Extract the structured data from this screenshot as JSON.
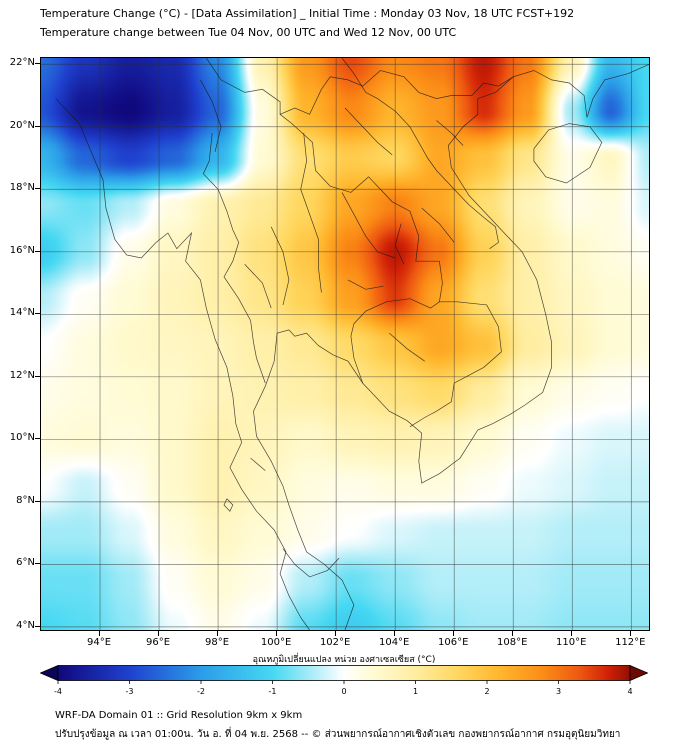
{
  "chart_data": {
    "type": "heatmap",
    "title": "Temperature Change (°C) - [Data Assimilation] _ Initial Time : Monday 03 Nov, 18 UTC FCST+192",
    "subtitle": "Temperature change between Tue 04 Nov, 00 UTC and Wed 12 Nov, 00 UTC",
    "x_axis": {
      "suffix": "°E",
      "ticks": [
        94,
        96,
        98,
        100,
        102,
        104,
        106,
        108,
        110,
        112
      ],
      "range": [
        92.0,
        112.6
      ]
    },
    "y_axis": {
      "suffix": "°N",
      "ticks": [
        4,
        6,
        8,
        10,
        12,
        14,
        16,
        18,
        20,
        22
      ],
      "range": [
        3.9,
        22.2
      ]
    },
    "grid": {
      "lons": [
        92.0,
        93.5,
        95.0,
        96.5,
        98.0,
        99.5,
        101.0,
        102.5,
        104.0,
        105.5,
        107.0,
        108.5,
        110.0,
        111.3,
        112.6
      ],
      "lats": [
        22.2,
        20.5,
        19.0,
        17.5,
        16.0,
        14.5,
        13.0,
        11.5,
        10.0,
        8.5,
        7.0,
        5.5,
        3.9
      ],
      "values": [
        [
          -2.5,
          -3.2,
          -3.6,
          -3.4,
          -2.2,
          0.8,
          2.6,
          3.4,
          2.8,
          3.0,
          3.8,
          3.0,
          0.8,
          -1.5,
          -1.0
        ],
        [
          -2.8,
          -3.8,
          -4.0,
          -3.6,
          -2.6,
          0.3,
          2.2,
          2.8,
          2.2,
          2.6,
          3.6,
          2.6,
          -0.5,
          -2.6,
          -1.0
        ],
        [
          -1.6,
          -2.6,
          -3.0,
          -2.6,
          -1.6,
          0.4,
          1.4,
          1.8,
          1.6,
          2.4,
          2.0,
          1.2,
          0.2,
          0.6,
          -0.4
        ],
        [
          -0.6,
          -0.8,
          -0.4,
          0.3,
          0.8,
          1.1,
          1.6,
          2.4,
          2.9,
          2.4,
          1.4,
          0.7,
          0.2,
          0.3,
          -0.2
        ],
        [
          -1.2,
          -0.6,
          0.2,
          0.6,
          0.9,
          1.3,
          1.9,
          2.9,
          3.8,
          3.0,
          1.7,
          0.9,
          0.5,
          0.3,
          0.1
        ],
        [
          -0.4,
          0.1,
          0.4,
          0.7,
          0.9,
          1.2,
          1.7,
          2.5,
          3.5,
          2.4,
          1.4,
          0.9,
          0.6,
          0.4,
          0.3
        ],
        [
          0.0,
          0.3,
          0.5,
          0.6,
          0.7,
          0.9,
          1.1,
          1.5,
          1.9,
          2.4,
          2.0,
          1.0,
          0.7,
          0.4,
          0.3
        ],
        [
          0.2,
          0.3,
          0.4,
          0.5,
          0.7,
          0.8,
          0.9,
          1.1,
          1.3,
          1.5,
          1.0,
          0.4,
          0.2,
          0.1,
          0.0
        ],
        [
          0.3,
          0.4,
          0.3,
          0.5,
          0.8,
          0.7,
          0.5,
          0.7,
          0.8,
          0.7,
          0.4,
          0.1,
          -0.1,
          -0.2,
          -0.2
        ],
        [
          0.0,
          -0.3,
          0.1,
          0.5,
          0.8,
          0.6,
          0.3,
          0.2,
          0.3,
          0.3,
          0.1,
          -0.1,
          -0.2,
          -0.3,
          -0.3
        ],
        [
          -0.5,
          -0.5,
          -0.2,
          0.3,
          0.6,
          0.4,
          0.2,
          0.0,
          -0.2,
          -0.3,
          -0.3,
          -0.3,
          -0.4,
          -0.4,
          -0.4
        ],
        [
          -0.8,
          -0.8,
          -0.5,
          0.1,
          0.4,
          0.2,
          -0.4,
          -0.8,
          -0.6,
          -0.4,
          -0.4,
          -0.4,
          -0.5,
          -0.5,
          -0.5
        ],
        [
          -1.0,
          -0.9,
          -0.6,
          -0.1,
          0.2,
          -0.1,
          -0.9,
          -1.2,
          -0.9,
          -0.6,
          -0.5,
          -0.5,
          -0.6,
          -0.6,
          -0.6
        ]
      ]
    },
    "colormap": [
      {
        "v": -4.0,
        "c": "#10087d"
      },
      {
        "v": -3.0,
        "c": "#1f41cf"
      },
      {
        "v": -2.0,
        "c": "#2b9ce8"
      },
      {
        "v": -1.0,
        "c": "#45d8f2"
      },
      {
        "v": -0.4,
        "c": "#b4eef8"
      },
      {
        "v": 0.0,
        "c": "#ffffff"
      },
      {
        "v": 0.4,
        "c": "#fffbd4"
      },
      {
        "v": 1.0,
        "c": "#ffeda0"
      },
      {
        "v": 1.6,
        "c": "#ffd75e"
      },
      {
        "v": 2.2,
        "c": "#ffb52c"
      },
      {
        "v": 2.8,
        "c": "#fb8b16"
      },
      {
        "v": 3.3,
        "c": "#ee5711"
      },
      {
        "v": 3.7,
        "c": "#cf2007"
      },
      {
        "v": 4.0,
        "c": "#930f03"
      }
    ],
    "colorbar": {
      "label": "อุณหภูมิเปลี่ยนแปลง หน่วย องศาเซลเซียส (°C)",
      "range": [
        -4,
        4
      ],
      "ticks": [
        -4,
        -3,
        -2,
        -1,
        0,
        1,
        2,
        3,
        4
      ],
      "under": "#0a0556",
      "over": "#6f0a02"
    }
  },
  "map_overlay": {
    "borders": [
      [
        [
          92.5,
          20.9
        ],
        [
          93.3,
          20.1
        ],
        [
          93.7,
          19.2
        ],
        [
          94.1,
          18.3
        ],
        [
          94.2,
          17.4
        ],
        [
          94.5,
          16.4
        ],
        [
          94.9,
          15.9
        ],
        [
          95.4,
          15.8
        ],
        [
          95.9,
          16.3
        ],
        [
          96.3,
          16.6
        ],
        [
          96.6,
          16.1
        ],
        [
          97.1,
          16.6
        ],
        [
          96.9,
          15.7
        ],
        [
          97.4,
          15.1
        ],
        [
          97.6,
          14.2
        ],
        [
          97.9,
          13.2
        ],
        [
          98.3,
          12.3
        ],
        [
          98.5,
          11.4
        ],
        [
          98.6,
          10.5
        ],
        [
          98.8,
          9.9
        ],
        [
          98.4,
          9.1
        ],
        [
          98.8,
          8.4
        ],
        [
          99.3,
          7.7
        ],
        [
          99.9,
          7.1
        ],
        [
          100.3,
          6.4
        ],
        [
          100.1,
          5.7
        ],
        [
          100.4,
          5.0
        ],
        [
          100.8,
          4.3
        ],
        [
          101.1,
          3.9
        ]
      ],
      [
        [
          102.3,
          3.9
        ],
        [
          102.6,
          4.7
        ],
        [
          102.2,
          5.5
        ],
        [
          101.6,
          6.0
        ],
        [
          101.0,
          6.4
        ],
        [
          100.7,
          7.1
        ],
        [
          100.4,
          7.9
        ],
        [
          100.2,
          8.5
        ],
        [
          99.8,
          9.3
        ],
        [
          99.3,
          10.1
        ],
        [
          99.2,
          10.9
        ],
        [
          99.6,
          11.7
        ],
        [
          99.9,
          12.5
        ],
        [
          100.0,
          13.4
        ],
        [
          100.4,
          13.5
        ],
        [
          100.6,
          13.3
        ],
        [
          101.0,
          13.4
        ],
        [
          101.4,
          13.0
        ],
        [
          101.9,
          12.7
        ],
        [
          102.4,
          12.5
        ],
        [
          102.9,
          11.8
        ],
        [
          103.3,
          11.4
        ],
        [
          103.8,
          10.9
        ],
        [
          104.4,
          10.6
        ],
        [
          104.9,
          10.2
        ],
        [
          104.8,
          9.3
        ],
        [
          104.9,
          8.6
        ],
        [
          105.5,
          8.9
        ],
        [
          106.2,
          9.4
        ],
        [
          106.8,
          10.3
        ],
        [
          107.3,
          10.5
        ],
        [
          107.9,
          10.8
        ],
        [
          108.4,
          11.1
        ],
        [
          109.0,
          11.5
        ],
        [
          109.3,
          12.3
        ],
        [
          109.3,
          13.1
        ],
        [
          109.1,
          14.0
        ],
        [
          108.8,
          15.1
        ],
        [
          108.3,
          16.0
        ],
        [
          107.8,
          16.5
        ],
        [
          107.1,
          17.2
        ],
        [
          106.5,
          17.8
        ],
        [
          105.9,
          18.7
        ],
        [
          105.8,
          19.4
        ],
        [
          106.3,
          20.0
        ],
        [
          106.8,
          20.4
        ],
        [
          106.8,
          20.9
        ],
        [
          107.4,
          21.1
        ],
        [
          108.0,
          21.6
        ],
        [
          108.7,
          21.8
        ],
        [
          109.3,
          21.5
        ],
        [
          109.9,
          21.4
        ],
        [
          110.4,
          21.0
        ],
        [
          110.5,
          20.3
        ],
        [
          110.7,
          20.9
        ],
        [
          111.1,
          21.5
        ],
        [
          111.9,
          21.7
        ],
        [
          112.6,
          22.0
        ]
      ],
      [
        [
          108.7,
          19.3
        ],
        [
          109.2,
          19.9
        ],
        [
          109.9,
          20.1
        ],
        [
          110.6,
          20.0
        ],
        [
          111.0,
          19.5
        ],
        [
          110.6,
          18.7
        ],
        [
          109.8,
          18.2
        ],
        [
          109.1,
          18.4
        ],
        [
          108.7,
          18.9
        ],
        [
          108.7,
          19.3
        ]
      ],
      [
        [
          97.8,
          19.8
        ],
        [
          97.7,
          18.9
        ],
        [
          97.5,
          18.5
        ],
        [
          98.0,
          18.0
        ],
        [
          98.3,
          17.3
        ],
        [
          98.5,
          16.7
        ],
        [
          98.7,
          16.3
        ],
        [
          98.5,
          15.7
        ],
        [
          98.2,
          15.2
        ],
        [
          98.7,
          14.5
        ],
        [
          99.1,
          13.8
        ],
        [
          99.2,
          13.1
        ],
        [
          99.3,
          12.6
        ],
        [
          99.6,
          11.8
        ]
      ],
      [
        [
          97.6,
          22.2
        ],
        [
          98.1,
          21.5
        ],
        [
          98.9,
          21.1
        ],
        [
          99.5,
          21.2
        ],
        [
          100.1,
          20.8
        ],
        [
          100.1,
          20.4
        ],
        [
          100.6,
          20.6
        ],
        [
          101.1,
          20.4
        ],
        [
          101.5,
          21.2
        ],
        [
          101.8,
          21.6
        ],
        [
          102.4,
          21.5
        ],
        [
          102.9,
          21.3
        ],
        [
          103.5,
          21.8
        ],
        [
          104.3,
          21.6
        ],
        [
          104.8,
          21.1
        ],
        [
          105.4,
          20.9
        ],
        [
          105.9,
          21.0
        ],
        [
          106.6,
          21.0
        ],
        [
          107.0,
          21.4
        ],
        [
          107.5,
          21.3
        ],
        [
          108.0,
          21.6
        ]
      ],
      [
        [
          100.1,
          20.4
        ],
        [
          100.5,
          20.1
        ],
        [
          101.2,
          19.5
        ],
        [
          101.3,
          18.6
        ],
        [
          101.8,
          18.1
        ],
        [
          102.5,
          17.9
        ],
        [
          103.1,
          18.4
        ],
        [
          103.9,
          17.6
        ],
        [
          104.5,
          17.3
        ],
        [
          104.8,
          16.5
        ],
        [
          104.7,
          15.7
        ],
        [
          105.5,
          15.7
        ],
        [
          105.6,
          15.0
        ],
        [
          105.5,
          14.4
        ]
      ],
      [
        [
          102.9,
          11.8
        ],
        [
          102.6,
          12.6
        ],
        [
          102.5,
          13.3
        ],
        [
          102.6,
          13.7
        ],
        [
          103.0,
          14.1
        ],
        [
          103.7,
          14.4
        ],
        [
          104.5,
          14.5
        ],
        [
          105.2,
          14.2
        ],
        [
          105.5,
          14.4
        ]
      ],
      [
        [
          102.2,
          22.2
        ],
        [
          102.6,
          21.7
        ],
        [
          103.0,
          21.1
        ],
        [
          103.4,
          20.9
        ],
        [
          104.0,
          20.5
        ],
        [
          104.5,
          20.0
        ],
        [
          104.8,
          19.5
        ],
        [
          105.1,
          19.0
        ],
        [
          105.4,
          18.6
        ],
        [
          105.9,
          18.1
        ],
        [
          106.5,
          17.5
        ],
        [
          107.0,
          17.1
        ],
        [
          107.4,
          16.8
        ],
        [
          107.5,
          16.3
        ],
        [
          107.2,
          16.1
        ]
      ],
      [
        [
          105.5,
          14.4
        ],
        [
          106.1,
          14.4
        ],
        [
          107.1,
          14.3
        ],
        [
          107.5,
          13.6
        ],
        [
          107.6,
          12.8
        ],
        [
          107.0,
          12.3
        ],
        [
          106.4,
          12.0
        ],
        [
          106.0,
          11.8
        ],
        [
          105.9,
          11.2
        ],
        [
          105.4,
          10.9
        ],
        [
          105.0,
          10.7
        ],
        [
          104.5,
          10.4
        ]
      ],
      [
        [
          100.2,
          6.5
        ],
        [
          100.6,
          6.0
        ],
        [
          101.1,
          5.6
        ],
        [
          101.7,
          5.8
        ],
        [
          102.1,
          6.2
        ]
      ],
      [
        [
          100.9,
          19.8
        ],
        [
          101.0,
          18.9
        ],
        [
          100.8,
          18.0
        ],
        [
          101.1,
          17.2
        ],
        [
          101.4,
          16.4
        ],
        [
          101.4,
          15.5
        ],
        [
          101.5,
          14.7
        ]
      ],
      [
        [
          102.2,
          17.9
        ],
        [
          102.6,
          17.2
        ],
        [
          103.0,
          16.5
        ],
        [
          103.4,
          16.0
        ],
        [
          104.0,
          15.8
        ]
      ],
      [
        [
          99.8,
          16.8
        ],
        [
          100.2,
          16.0
        ],
        [
          100.4,
          15.1
        ],
        [
          100.2,
          14.3
        ]
      ],
      [
        [
          98.9,
          15.6
        ],
        [
          99.5,
          15.0
        ],
        [
          99.8,
          14.2
        ]
      ],
      [
        [
          105.4,
          20.2
        ],
        [
          105.9,
          19.8
        ],
        [
          106.3,
          19.4
        ]
      ],
      [
        [
          102.3,
          20.6
        ],
        [
          102.9,
          20.0
        ],
        [
          103.4,
          19.5
        ],
        [
          103.9,
          19.1
        ]
      ],
      [
        [
          104.9,
          17.4
        ],
        [
          105.5,
          16.9
        ],
        [
          106.0,
          16.3
        ]
      ],
      [
        [
          103.8,
          13.4
        ],
        [
          104.4,
          12.9
        ],
        [
          105.0,
          12.5
        ]
      ],
      [
        [
          97.4,
          21.5
        ],
        [
          97.8,
          20.8
        ],
        [
          98.1,
          20.0
        ],
        [
          97.9,
          19.2
        ]
      ],
      [
        [
          99.1,
          9.4
        ],
        [
          99.6,
          9.0
        ]
      ],
      [
        [
          102.4,
          15.1
        ],
        [
          103.0,
          14.8
        ],
        [
          103.6,
          14.9
        ]
      ],
      [
        [
          104.2,
          16.9
        ],
        [
          104.0,
          16.2
        ],
        [
          104.3,
          15.6
        ]
      ],
      [
        [
          98.3,
          8.1
        ],
        [
          98.5,
          7.9
        ],
        [
          98.4,
          7.7
        ],
        [
          98.2,
          7.9
        ],
        [
          98.3,
          8.1
        ]
      ]
    ]
  },
  "footer": {
    "line1": "WRF-DA Domain 01 :: Grid Resolution 9km x 9km",
    "line2": "ปรับปรุงข้อมูล ณ เวลา 01:00น. วัน อ. ที่ 04 พ.ย. 2568 -- © ส่วนพยากรณ์อากาศเชิงตัวเลข กองพยากรณ์อากาศ กรมอุตุนิยมวิทยา"
  }
}
